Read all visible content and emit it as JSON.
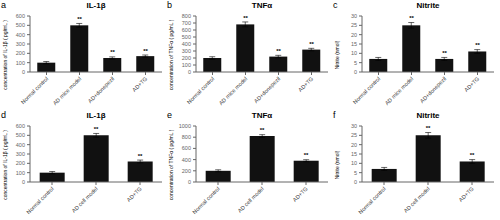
{
  "chart_data": [
    {
      "type": "bar",
      "title": "IL-1β",
      "ylabel": "concentration of IL-1β ( pg/mL )",
      "categories": [
        "Normal control",
        "AD mice model",
        "AD+donepezil",
        "AD+TG"
      ],
      "values": [
        100,
        500,
        150,
        170
      ],
      "errors": [
        12,
        20,
        12,
        12
      ],
      "color": "#111111",
      "ylim": [
        0,
        600
      ],
      "yticks": [
        0,
        100,
        200,
        300,
        400,
        500,
        600
      ],
      "grid": false,
      "annotations": [
        {
          "text": "a"
        },
        {
          "text": "**",
          "category": "AD mice model"
        },
        {
          "text": "**",
          "category": "AD+donepezil"
        },
        {
          "text": "**",
          "category": "AD+TG"
        }
      ]
    },
    {
      "type": "bar",
      "title": "TNFα",
      "ylabel": "concentration of TNFα ( pg/mL )",
      "categories": [
        "Normal control",
        "AD mice model",
        "AD+donepezil",
        "AD+TG"
      ],
      "values": [
        200,
        680,
        220,
        320
      ],
      "errors": [
        18,
        35,
        18,
        18
      ],
      "color": "#111111",
      "ylim": [
        0,
        800
      ],
      "yticks": [
        0,
        100,
        200,
        300,
        400,
        500,
        600,
        700,
        800
      ],
      "grid": false,
      "annotations": [
        {
          "text": "b"
        },
        {
          "text": "**",
          "category": "AD mice model"
        },
        {
          "text": "**",
          "category": "AD+donepezil"
        },
        {
          "text": "**",
          "category": "AD+TG"
        }
      ]
    },
    {
      "type": "bar",
      "title": "Nitrite",
      "ylabel": "Nitrite (nmol)",
      "categories": [
        "Normal control",
        "AD mice model",
        "AD+donepezil",
        "AD+TG"
      ],
      "values": [
        7,
        25,
        7,
        11
      ],
      "errors": [
        0.8,
        1.5,
        0.8,
        1.0
      ],
      "color": "#111111",
      "ylim": [
        0,
        30
      ],
      "yticks": [
        0,
        5,
        10,
        15,
        20,
        25,
        30
      ],
      "grid": false,
      "annotations": [
        {
          "text": "c"
        },
        {
          "text": "**",
          "category": "AD mice model"
        },
        {
          "text": "**",
          "category": "AD+donepezil"
        },
        {
          "text": "**",
          "category": "AD+TG"
        }
      ]
    },
    {
      "type": "bar",
      "title": "IL-1β",
      "ylabel": "concentration of IL-1β ( pg/mL )",
      "categories": [
        "Normal control",
        "AD cell model",
        "AD+TG"
      ],
      "values": [
        100,
        500,
        220
      ],
      "errors": [
        12,
        20,
        15
      ],
      "color": "#111111",
      "ylim": [
        0,
        600
      ],
      "yticks": [
        0,
        100,
        200,
        300,
        400,
        500,
        600
      ],
      "grid": false,
      "annotations": [
        {
          "text": "d"
        },
        {
          "text": "**",
          "category": "AD cell model"
        },
        {
          "text": "**",
          "category": "AD+TG"
        }
      ]
    },
    {
      "type": "bar",
      "title": "TNFα",
      "ylabel": "concentration of TNFα ( pg/mL )",
      "categories": [
        "Normal control",
        "AD cell model",
        "AD+TG"
      ],
      "values": [
        200,
        820,
        380
      ],
      "errors": [
        18,
        25,
        18
      ],
      "color": "#111111",
      "ylim": [
        0,
        1000
      ],
      "yticks": [
        0,
        200,
        400,
        600,
        800,
        1000
      ],
      "grid": false,
      "annotations": [
        {
          "text": "e"
        },
        {
          "text": "**",
          "category": "AD cell model"
        },
        {
          "text": "**",
          "category": "AD+TG"
        }
      ]
    },
    {
      "type": "bar",
      "title": "Nitrite",
      "ylabel": "Nitrite (nmol)",
      "categories": [
        "Normal control",
        "AD cell model",
        "AD+TG"
      ],
      "values": [
        7,
        25,
        11
      ],
      "errors": [
        0.8,
        1.5,
        1.0
      ],
      "color": "#111111",
      "ylim": [
        0,
        30
      ],
      "yticks": [
        0,
        5,
        10,
        15,
        20,
        25,
        30
      ],
      "grid": false,
      "annotations": [
        {
          "text": "f"
        },
        {
          "text": "**",
          "category": "AD cell model"
        },
        {
          "text": "**",
          "category": "AD+TG"
        }
      ]
    }
  ]
}
